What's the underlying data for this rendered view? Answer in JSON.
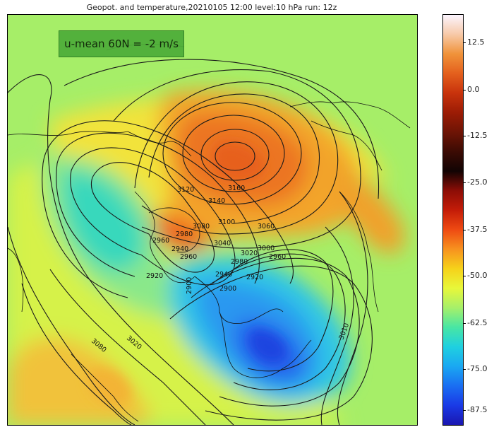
{
  "title": "Geopot. and temperature,20210105 12:00 level:10 hPa run: 12z",
  "annotation": "u-mean 60N = -2 m/s",
  "colorbar": {
    "ticks": [
      "12.5",
      "0.0",
      "-12.5",
      "-25.0",
      "-37.5",
      "-50.0",
      "-62.5",
      "-75.0",
      "-87.5"
    ],
    "stops": [
      "#fbf5ff",
      "#f7c9a8",
      "#f0933a",
      "#e4601d",
      "#c8330c",
      "#9c1c05",
      "#6e1405",
      "#3c0b04",
      "#120404",
      "#8c0d06",
      "#c41c08",
      "#ee4a12",
      "#f7921f",
      "#f6d21a",
      "#e8f73a",
      "#a6f06a",
      "#48e6a4",
      "#1fd0e0",
      "#1aa8f2",
      "#1a6ef2",
      "#1a3ae6",
      "#1a16b0"
    ]
  },
  "contour_labels": [
    "3160",
    "3140",
    "3120",
    "3100",
    "3080",
    "3060",
    "3040",
    "3020",
    "3000",
    "2980",
    "2960",
    "2940",
    "2920",
    "2900",
    "3080",
    "3020",
    "3010",
    "2940",
    "2960",
    "2980",
    "2960",
    "2900",
    "2920"
  ]
}
